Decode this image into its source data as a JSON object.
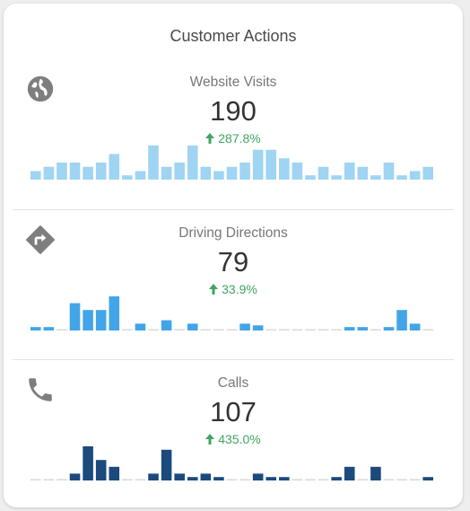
{
  "title": "Customer Actions",
  "colors": {
    "up": "#3fa660",
    "baseline": "#d9d9d9"
  },
  "sections": [
    {
      "icon": "globe-icon",
      "label": "Website Visits",
      "value": "190",
      "change": "287.8%",
      "color": "#9fd4f2",
      "chart_data": {
        "type": "bar",
        "values": [
          2,
          3,
          4,
          4,
          3,
          4,
          6,
          1,
          2,
          8,
          3,
          4,
          8,
          3,
          2,
          3,
          4,
          7,
          7,
          5,
          4,
          1,
          3,
          1,
          4,
          3,
          1,
          4,
          1,
          2,
          3
        ]
      }
    },
    {
      "icon": "directions-icon",
      "label": "Driving Directions",
      "value": "79",
      "change": "33.9%",
      "color": "#42a5e8",
      "chart_data": {
        "type": "bar",
        "values": [
          1,
          1,
          0,
          8,
          6,
          6,
          10,
          0,
          2,
          0,
          3,
          0,
          2,
          0,
          0,
          0,
          2,
          1.5,
          0,
          0,
          0,
          0,
          0,
          0,
          1,
          1,
          0,
          1,
          6,
          2,
          0
        ]
      }
    },
    {
      "icon": "phone-icon",
      "label": "Calls",
      "value": "107",
      "change": "435.0%",
      "color": "#1c4a7d",
      "chart_data": {
        "type": "bar",
        "values": [
          0,
          0,
          0,
          2,
          10,
          6,
          4,
          0,
          0,
          2,
          9,
          2,
          1,
          2,
          1,
          0,
          0,
          2,
          1,
          1,
          0,
          0,
          0,
          1,
          4,
          0,
          4,
          0,
          0,
          0,
          1
        ]
      }
    }
  ]
}
